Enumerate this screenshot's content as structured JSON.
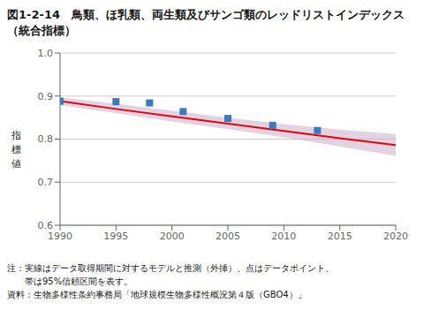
{
  "chart_data": {
    "type": "line",
    "title": "図1-2-14　鳥類、ほ乳類、両生類及びサンゴ類のレッドリストインデックス（統合指標）",
    "y_label": "指\n標\n値",
    "annotations": [
      "注：実線はデータ取得期間に対するモデルと推測（外挿）、点はデータポイント、",
      "　　帯は95%信頼区間を表す。",
      "資料：生物多様性条約事務局「地球規模生物多様性概況第４版（GBO4）」"
    ],
    "x": [
      1990,
      1995,
      2000,
      2005,
      2010,
      2015,
      2020
    ],
    "series": [
      {
        "type": "band",
        "color": "#c9afc9",
        "lower": [
          0.879,
          0.86,
          0.841,
          0.823,
          0.804,
          0.783,
          0.761
        ],
        "upper": [
          0.897,
          0.882,
          0.866,
          0.85,
          0.835,
          0.822,
          0.812
        ]
      },
      {
        "type": "line",
        "color": "#e8000a",
        "values": [
          0.888,
          0.87,
          0.853,
          0.836,
          0.819,
          0.802,
          0.786
        ]
      },
      {
        "type": "scatter",
        "color": "#3a7bbf",
        "marker": "square",
        "x": [
          1990,
          1995,
          1998,
          2001,
          2005,
          2009,
          2013
        ],
        "values": [
          0.888,
          0.887,
          0.884,
          0.864,
          0.848,
          0.832,
          0.82
        ]
      }
    ],
    "xlim": [
      1990,
      2020
    ],
    "ylim": [
      0.6,
      1.0
    ],
    "xticks": [
      1990,
      1995,
      2000,
      2005,
      2010,
      2015,
      2020
    ],
    "yticks": [
      0.6,
      0.7,
      0.8,
      0.9,
      {
        "value": 1,
        "label": "1.0"
      }
    ],
    "grid": "y"
  }
}
